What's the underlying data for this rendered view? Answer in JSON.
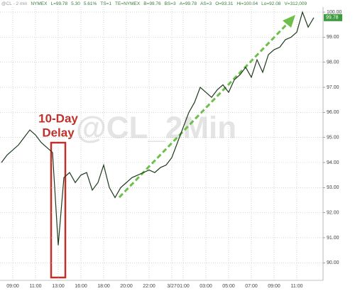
{
  "header": [
    "@CL - 2 min",
    "NYMEX",
    "L=99.78",
    "5.30",
    "5.61%",
    "TS=1",
    "TE=NYMEX",
    "B=99.76",
    "BS=3",
    "A=99.78",
    "AS=3",
    "O=93.31",
    "Hi=100.04",
    "Lo=92.08",
    "V=312,009"
  ],
  "chart_data": {
    "type": "line",
    "watermark": "@CL_2Min",
    "annotation": [
      "10-Day",
      "Delay"
    ],
    "last_price_label": "99.78",
    "color": "#1e3a1e",
    "grid": true,
    "categories": [
      null,
      null,
      "09:00",
      null,
      null,
      null,
      "11:00",
      null,
      null,
      null,
      "13:00",
      null,
      null,
      null,
      "16:00",
      null,
      null,
      null,
      "18:00",
      null,
      null,
      null,
      "20:00",
      null,
      null,
      null,
      "22:00",
      null,
      null,
      null,
      "3/27",
      null,
      "01:00",
      null,
      null,
      null,
      "03:00",
      null,
      null,
      null,
      "05:00",
      null,
      null,
      null,
      "07:00",
      null,
      null,
      null,
      "09:00",
      null,
      null,
      null,
      "11:00",
      null,
      null,
      null
    ],
    "values": [
      94.0,
      94.3,
      94.5,
      94.7,
      95.0,
      95.3,
      95.1,
      94.8,
      94.6,
      94.4,
      90.7,
      93.4,
      93.6,
      93.2,
      93.5,
      93.6,
      92.9,
      93.2,
      93.9,
      93.0,
      92.6,
      93.0,
      93.2,
      93.4,
      93.5,
      93.6,
      93.7,
      93.6,
      93.8,
      93.9,
      94.2,
      94.8,
      95.4,
      96.0,
      96.4,
      97.0,
      96.8,
      96.6,
      96.9,
      97.1,
      96.8,
      97.3,
      97.5,
      97.8,
      97.4,
      98.1,
      97.6,
      98.3,
      98.5,
      98.6,
      98.9,
      99.0,
      99.2,
      100.0,
      99.4,
      99.78
    ],
    "ylim": [
      89.3,
      100.2
    ],
    "yticks": [
      {
        "value": 90,
        "label": "90.00"
      },
      {
        "value": 91,
        "label": "91.00"
      },
      {
        "value": 92,
        "label": "92.00"
      },
      {
        "value": 93,
        "label": "93.00"
      },
      {
        "value": 94,
        "label": "94.00"
      },
      {
        "value": 95,
        "label": "95.00"
      },
      {
        "value": 96,
        "label": "96.00"
      },
      {
        "value": 97,
        "label": "97.00"
      },
      {
        "value": 98,
        "label": "98.00"
      },
      {
        "value": 99,
        "label": "99.00"
      },
      {
        "value": 100,
        "label": "100.00"
      }
    ]
  }
}
